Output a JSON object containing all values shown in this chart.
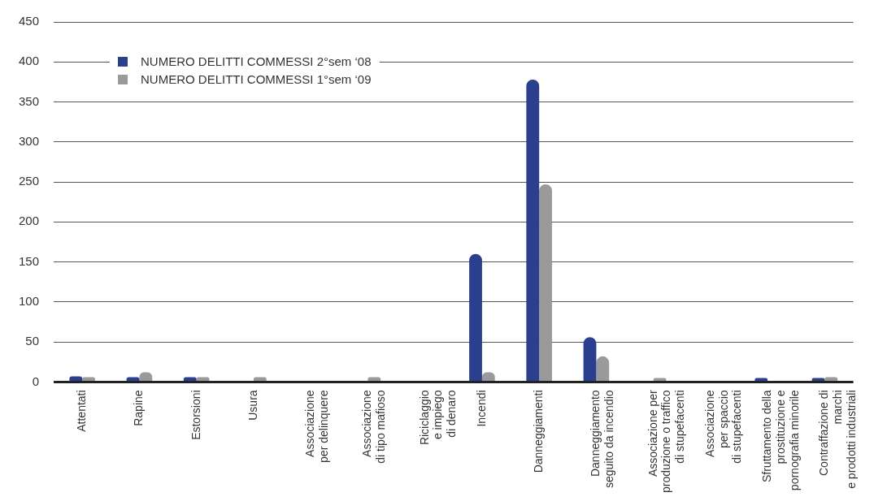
{
  "chart_data": {
    "type": "bar",
    "categories": [
      "Attentati",
      "Rapine",
      "Estorsioni",
      "Usura",
      "Associazione\nper delinquere",
      "Associazione\ndi tipo mafioso",
      "Riciclaggio\ne impiego\ndi denaro",
      "Incendi",
      "Danneggiamenti",
      "Danneggiamento\nseguito da incendio",
      "Associazione per\nproduzione o traffico\ndi stupefacenti",
      "Associazione\nper spaccio\ndi stupefacenti",
      "Sfruttamento della\nprostituzione e\npornografia minorile",
      "Contraffazione di\nmarchi\ne prodotti industriali"
    ],
    "series": [
      {
        "name": "NUMERO DELITTI COMMESSI 2°sem ‘08",
        "color": "#2b3f8f",
        "values": [
          7,
          6,
          6,
          0,
          0,
          0,
          0,
          160,
          378,
          56,
          0,
          0,
          5,
          5
        ]
      },
      {
        "name": "NUMERO DELITTI COMMESSI 1°sem ‘09",
        "color": "#9a9a9c",
        "values": [
          6,
          12,
          6,
          6,
          0,
          6,
          0,
          12,
          247,
          32,
          5,
          0,
          0,
          6
        ]
      }
    ],
    "ylim": [
      0,
      450
    ],
    "yticks": [
      0,
      50,
      100,
      150,
      200,
      250,
      300,
      350,
      400,
      450
    ],
    "grid": "y",
    "legend": "top left"
  }
}
